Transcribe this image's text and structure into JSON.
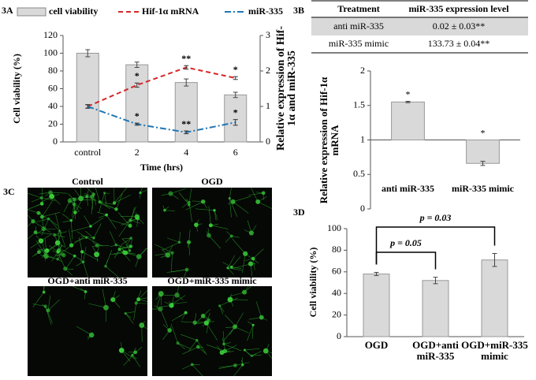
{
  "panel_labels": [
    "3A",
    "3B",
    "3C",
    "3D"
  ],
  "chart_data": [
    {
      "type": "combo",
      "xlabel": "Time (hrs)",
      "ylabel": "Cell viability (%)",
      "y2label": "Relative expression of Hif-1α and miR-335",
      "categories": [
        "control",
        "2",
        "4",
        "6"
      ],
      "ylim": [
        0,
        120
      ],
      "yticks": [
        0,
        20,
        40,
        60,
        80,
        100,
        120
      ],
      "y2lim": [
        0,
        3
      ],
      "y2ticks": [
        0,
        1,
        2,
        3
      ],
      "series": [
        {
          "name": "cell viability",
          "type": "bar",
          "color": "#d9d9d9",
          "values": [
            100,
            87,
            67,
            53
          ],
          "errors": [
            4,
            3,
            4,
            3
          ]
        },
        {
          "name": "Hif-1α mRNA",
          "type": "line",
          "axis": "y2",
          "color": "#d62728",
          "values": [
            1.0,
            1.6,
            2.1,
            1.8
          ],
          "errors": [
            0.05,
            0.06,
            0.05,
            0.04
          ],
          "significance": [
            null,
            "*",
            "**",
            "*"
          ]
        },
        {
          "name": "miR-335",
          "type": "line",
          "axis": "y2",
          "color": "#1f77b4",
          "values": [
            1.0,
            0.5,
            0.27,
            0.55
          ],
          "errors": [
            0.05,
            0.03,
            0.04,
            0.08
          ],
          "significance": [
            null,
            "*",
            "**",
            "*"
          ]
        }
      ]
    },
    {
      "type": "bar",
      "ylabel": "Relative expression of Hif-1α mRNA",
      "categories": [
        "anti miR-335",
        "miR-335 mimic"
      ],
      "base": 1,
      "ylim": [
        0,
        2
      ],
      "yticks": [
        0,
        0.5,
        1,
        1.5,
        2
      ],
      "series": [
        {
          "color": "#d9d9d9",
          "values": [
            1.55,
            0.66
          ],
          "errors": [
            0.01,
            0.03
          ],
          "significance": [
            "*",
            "*"
          ]
        }
      ]
    },
    {
      "type": "bar",
      "ylabel": "Cell viability (%)",
      "categories": [
        "OGD",
        "OGD+anti miR-335",
        "OGD+miR-335 mimic"
      ],
      "base": 0,
      "ylim": [
        0,
        100
      ],
      "yticks": [
        0,
        20,
        40,
        60,
        80,
        100
      ],
      "series": [
        {
          "color": "#d9d9d9",
          "values": [
            58,
            52,
            71
          ],
          "errors": [
            1.5,
            3,
            6
          ]
        }
      ],
      "comparisons": [
        {
          "pair": [
            0,
            1
          ],
          "label": "p = 0.05"
        },
        {
          "pair": [
            0,
            2
          ],
          "label": "p = 0.03"
        }
      ]
    }
  ],
  "table": {
    "header": [
      "Treatment",
      "miR-335 expression level"
    ],
    "rows": [
      [
        "anti miR-335",
        "0.02 ±  0.03**"
      ],
      [
        "miR-335 mimic",
        "133.73 ±  0.04**"
      ]
    ]
  },
  "images": {
    "labels": [
      "Control",
      "OGD",
      "OGD+anti miR-335",
      "OGD+miR-335 mimic"
    ]
  }
}
